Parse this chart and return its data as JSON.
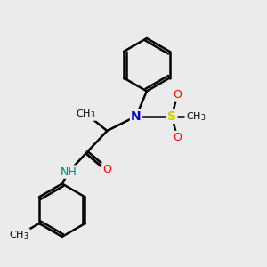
{
  "bg_color": "#ebebeb",
  "bond_color": "#000000",
  "bond_width": 1.8,
  "atom_colors": {
    "N": "#0000cc",
    "O": "#ff0000",
    "S": "#cccc00",
    "H": "#008080",
    "C": "#000000"
  },
  "font_size": 9,
  "font_size_small": 8
}
